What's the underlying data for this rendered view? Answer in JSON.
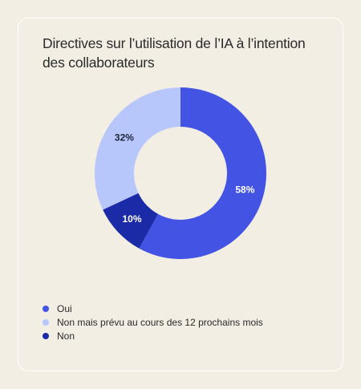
{
  "title": "Directives sur l’utilisation de l’IA à l’intention des collaborateurs",
  "chart_data": {
    "type": "pie",
    "title": "Directives sur l’utilisation de l’IA à l’intention des collaborateurs",
    "donut": true,
    "start": "top",
    "direction": "clockwise",
    "slices": [
      {
        "label": "Oui",
        "value": 58,
        "display": "58%",
        "color": "#4353e4",
        "label_color": "#ffffff"
      },
      {
        "label": "Non",
        "value": 10,
        "display": "10%",
        "color": "#1b2aa6",
        "label_color": "#ffffff"
      },
      {
        "label": "Non mais prévu au cours des 12 prochains mois",
        "value": 32,
        "display": "32%",
        "color": "#b8c7fb",
        "label_color": "#1e2338"
      }
    ],
    "legend": {
      "placement": "bottom-left",
      "entries": [
        {
          "label": "Oui",
          "color": "#4353e4"
        },
        {
          "label": "Non mais prévu au cours des 12 prochains mois",
          "color": "#b8c7fb"
        },
        {
          "label": "Non",
          "color": "#1b2aa6"
        }
      ]
    }
  }
}
